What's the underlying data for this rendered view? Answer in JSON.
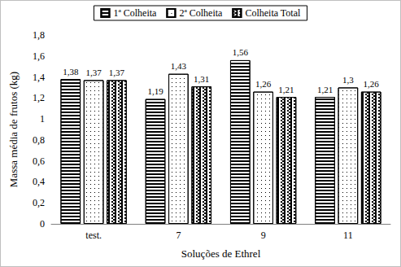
{
  "chart_data": {
    "type": "bar",
    "x_label": "Soluções de Ethrel",
    "y_label": "Massa média de frutos (kg)",
    "categories": [
      "test.",
      "7",
      "9",
      "11"
    ],
    "series": [
      {
        "name": "1ª Colheita",
        "color": "#000000",
        "values": [
          1.38,
          1.19,
          1.56,
          1.21
        ],
        "value_labels": [
          "1,38",
          "1,19",
          "1,56",
          "1,21"
        ]
      },
      {
        "name": "2ª Colheita",
        "color": "#000000",
        "values": [
          1.37,
          1.43,
          1.26,
          1.3
        ],
        "value_labels": [
          "1,37",
          "1,43",
          "1,26",
          "1,3"
        ]
      },
      {
        "name": "Colheita Total",
        "color": "#000000",
        "values": [
          1.37,
          1.31,
          1.21,
          1.26
        ],
        "value_labels": [
          "1,37",
          "1,31",
          "1,21",
          "1,26"
        ]
      }
    ],
    "ylim": [
      0,
      1.8
    ],
    "yticks": [
      0,
      {
        "value": 0.2,
        "label": "0,2"
      },
      {
        "value": 0.4,
        "label": "0,4"
      },
      {
        "value": 0.6,
        "label": "0,6"
      },
      {
        "value": 0.8,
        "label": "0,8"
      },
      1,
      {
        "value": 1.2,
        "label": "1,2"
      },
      {
        "value": 1.4,
        "label": "1,4"
      },
      {
        "value": 1.6,
        "label": "1,6"
      },
      {
        "value": 1.8,
        "label": "1,8"
      }
    ],
    "grid": false,
    "legend": "top",
    "data_labels": true
  }
}
